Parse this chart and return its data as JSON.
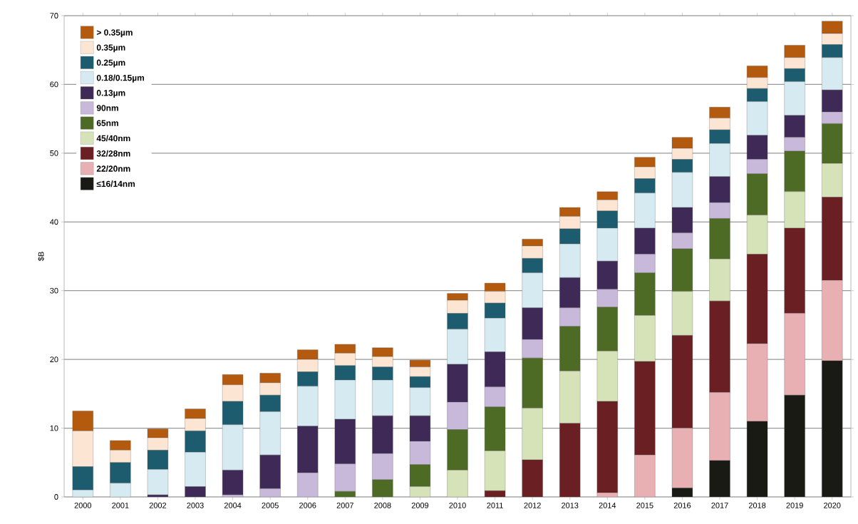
{
  "chart_data": {
    "type": "bar",
    "stacked": true,
    "ylabel": "$B",
    "categories": [
      "2000",
      "2001",
      "2002",
      "2003",
      "2004",
      "2005",
      "2006",
      "2007",
      "2008",
      "2009",
      "2010",
      "2011",
      "2012",
      "2013",
      "2014",
      "2015",
      "2016",
      "2017",
      "2018",
      "2019",
      "2020"
    ],
    "ylim": [
      0,
      70
    ],
    "yticks": [
      0,
      10,
      20,
      30,
      40,
      50,
      60,
      70
    ],
    "grid": "y",
    "legend": "top left",
    "series": [
      {
        "name": "≤16/14nm",
        "color": "#1a1a14",
        "values": [
          0,
          0,
          0,
          0,
          0,
          0,
          0,
          0,
          0,
          0,
          0,
          0,
          0,
          0,
          0,
          0,
          1.3,
          5.3,
          11.0,
          14.8,
          19.8
        ]
      },
      {
        "name": "22/20nm",
        "color": "#e8b0b3",
        "values": [
          0,
          0,
          0,
          0,
          0,
          0,
          0,
          0,
          0,
          0,
          0,
          0,
          0,
          0,
          0.6,
          6.1,
          8.7,
          9.9,
          11.3,
          11.9,
          11.7
        ]
      },
      {
        "name": "32/28nm",
        "color": "#6a1f22",
        "values": [
          0,
          0,
          0,
          0,
          0,
          0,
          0,
          0,
          0,
          0,
          0,
          0.9,
          5.4,
          10.7,
          13.3,
          13.6,
          13.5,
          13.3,
          13.0,
          12.4,
          12.1
        ]
      },
      {
        "name": "45/40nm",
        "color": "#d6e3b8",
        "values": [
          0,
          0,
          0,
          0,
          0,
          0,
          0,
          0,
          0,
          1.5,
          3.9,
          5.8,
          7.5,
          7.6,
          7.3,
          6.7,
          6.4,
          6.1,
          5.7,
          5.3,
          4.9
        ]
      },
      {
        "name": "65nm",
        "color": "#4e6b25",
        "values": [
          0,
          0,
          0,
          0,
          0,
          0,
          0,
          0.8,
          2.5,
          3.2,
          5.9,
          6.4,
          7.3,
          6.5,
          6.4,
          6.2,
          6.2,
          5.9,
          6.0,
          5.9,
          5.8
        ]
      },
      {
        "name": "90nm",
        "color": "#c8b8da",
        "values": [
          0,
          0,
          0,
          0,
          0.3,
          1.2,
          3.5,
          4.0,
          3.8,
          3.4,
          4.0,
          2.9,
          2.7,
          2.7,
          2.6,
          2.7,
          2.3,
          2.3,
          2.1,
          2.0,
          1.7
        ]
      },
      {
        "name": "0.13µm",
        "color": "#3f2a57",
        "values": [
          0,
          0,
          0.3,
          1.5,
          3.6,
          4.9,
          6.8,
          6.5,
          5.5,
          3.7,
          5.5,
          5.1,
          4.6,
          4.4,
          4.1,
          3.8,
          3.7,
          3.8,
          3.5,
          3.2,
          3.2
        ]
      },
      {
        "name": "0.18/0.15µm",
        "color": "#d6eaf2",
        "values": [
          1.0,
          2.0,
          3.7,
          5.0,
          6.6,
          6.3,
          5.8,
          5.7,
          5.2,
          4.1,
          5.1,
          4.9,
          5.1,
          4.9,
          4.8,
          5.1,
          5.1,
          4.8,
          4.9,
          4.9,
          4.7
        ]
      },
      {
        "name": "0.25µm",
        "color": "#1d5c6e",
        "values": [
          3.4,
          3.0,
          2.8,
          3.1,
          3.4,
          2.4,
          2.1,
          2.1,
          1.9,
          1.6,
          2.3,
          2.2,
          2.1,
          2.2,
          2.5,
          2.1,
          1.9,
          2.0,
          1.9,
          1.9,
          1.9
        ]
      },
      {
        "name": "0.35µm",
        "color": "#fde5d3",
        "values": [
          5.2,
          1.8,
          1.8,
          1.8,
          2.4,
          1.8,
          1.8,
          1.8,
          1.5,
          1.4,
          1.9,
          1.7,
          1.8,
          1.8,
          1.6,
          1.7,
          1.6,
          1.7,
          1.6,
          1.6,
          1.6
        ]
      },
      {
        "name": "> 0.35µm",
        "color": "#b35a0e",
        "values": [
          2.9,
          1.4,
          1.3,
          1.4,
          1.5,
          1.4,
          1.4,
          1.3,
          1.3,
          1.0,
          1.0,
          1.2,
          1.0,
          1.3,
          1.2,
          1.4,
          1.6,
          1.6,
          1.7,
          1.8,
          1.8
        ]
      }
    ]
  }
}
